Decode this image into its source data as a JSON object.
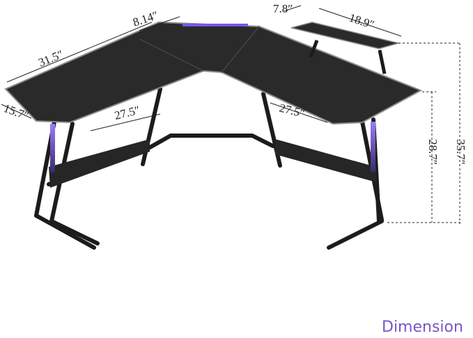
{
  "dimensions": {
    "top_left_edge": "31.5″",
    "top_notch": "8.14″",
    "shelf_depth": "7.8″",
    "shelf_width": "18.9″",
    "left_depth": "15.7″",
    "inner_left": "27.5″",
    "inner_right": "27.5″",
    "desk_height": "28.7″",
    "total_height": "35.7″"
  },
  "caption": "Dimension",
  "colors": {
    "desk": "#2a2a2a",
    "frame": "#1c1c1c",
    "led": "#7a55e8",
    "accent": "#7a55c9"
  }
}
